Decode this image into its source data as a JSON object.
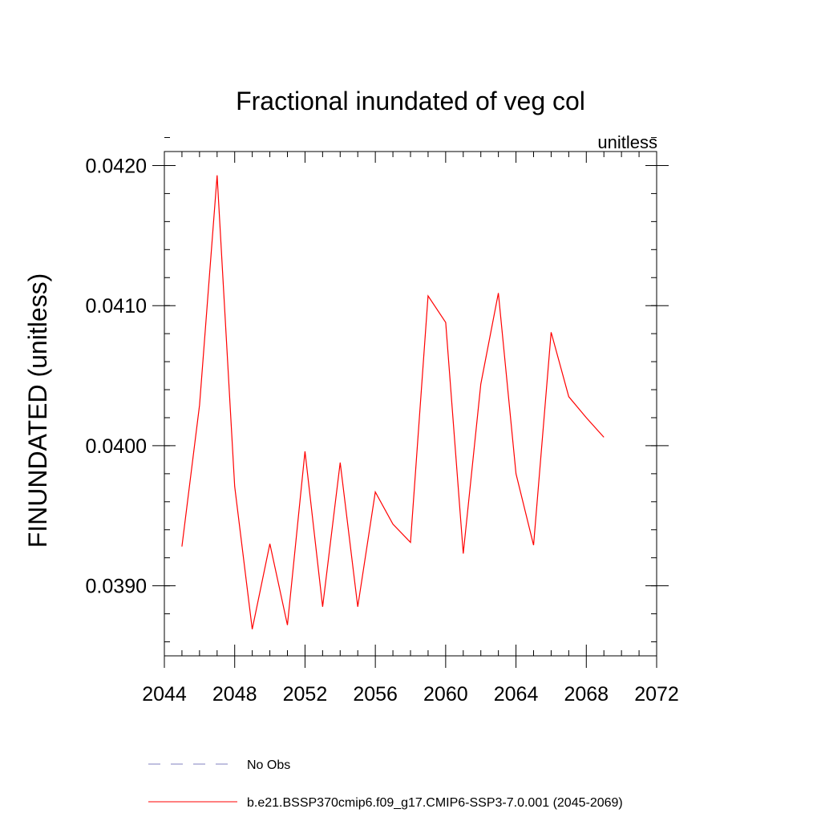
{
  "chart_data": {
    "type": "line",
    "title": "Fractional inundated of veg col",
    "subtitle": "unitless",
    "xlabel": "",
    "ylabel": "FINUNDATED  (unitless)",
    "xlim": [
      2044,
      2072
    ],
    "ylim": [
      0.0385,
      0.0421
    ],
    "xticks": [
      2044,
      2048,
      2052,
      2056,
      2060,
      2064,
      2068,
      2072
    ],
    "xtick_labels": [
      "2044",
      "2048",
      "2052",
      "2056",
      "2060",
      "2064",
      "2068",
      "2072"
    ],
    "yticks": [
      0.039,
      0.04,
      0.041,
      0.042
    ],
    "ytick_labels": [
      "0.0390",
      "0.0400",
      "0.0410",
      "0.0420"
    ],
    "grid": false,
    "legend_position": "bottom",
    "series": [
      {
        "name": "b.e21.BSSP370cmip6.f09_g17.CMIP6-SSP3-7.0.001 (2045-2069)",
        "color": "#ff0000",
        "style": "solid",
        "x": [
          2045,
          2046,
          2047,
          2048,
          2049,
          2050,
          2051,
          2052,
          2053,
          2054,
          2055,
          2056,
          2057,
          2058,
          2059,
          2060,
          2061,
          2062,
          2063,
          2064,
          2065,
          2066,
          2067,
          2068,
          2069
        ],
        "y": [
          0.03928,
          0.04029,
          0.04193,
          0.03971,
          0.03869,
          0.0393,
          0.03872,
          0.03996,
          0.03885,
          0.03988,
          0.03885,
          0.03967,
          0.03944,
          0.03931,
          0.04107,
          0.04088,
          0.03923,
          0.04044,
          0.04109,
          0.0398,
          0.03929,
          0.04081,
          0.04035,
          0.0402,
          0.04006
        ]
      }
    ],
    "legend": [
      {
        "label": "No Obs",
        "color": "#8080c0",
        "style": "dashed"
      },
      {
        "label": "b.e21.BSSP370cmip6.f09_g17.CMIP6-SSP3-7.0.001 (2045-2069)",
        "color": "#ff0000",
        "style": "solid"
      }
    ]
  }
}
